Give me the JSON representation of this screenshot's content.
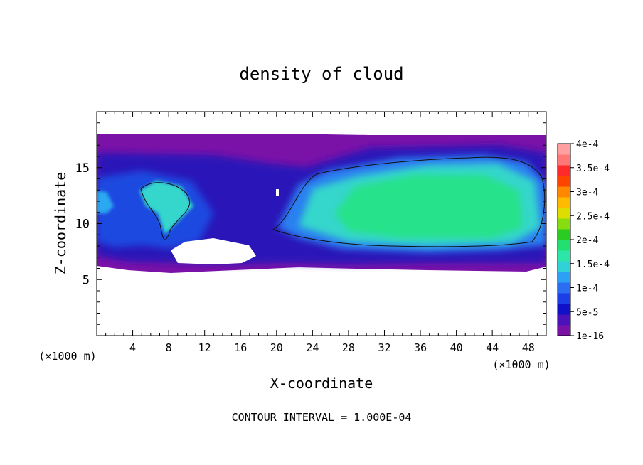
{
  "chart_data": {
    "type": "heatmap",
    "title": "density of cloud",
    "xlabel": "X-coordinate",
    "ylabel": "Z-coordinate",
    "x_unit_left": "(×1000 m)",
    "x_unit_right": "(×1000 m)",
    "footer": "CONTOUR INTERVAL = 1.000E-04",
    "xlim": [
      0,
      50
    ],
    "ylim": [
      0,
      20
    ],
    "x_ticks": [
      4,
      8,
      12,
      16,
      20,
      24,
      28,
      32,
      36,
      40,
      44,
      48
    ],
    "y_ticks": [
      5,
      10,
      15
    ],
    "colorbar": {
      "labels": [
        "1e-16",
        "5e-5",
        "1e-4",
        "1.5e-4",
        "2e-4",
        "2.5e-4",
        "3e-4",
        "3.5e-4",
        "4e-4"
      ],
      "levels": [
        0,
        0.5,
        1,
        1.5,
        2,
        2.5,
        3,
        3.5,
        4
      ],
      "colors": [
        "#7a12a8",
        "#4a12b8",
        "#1010c8",
        "#1c3ee6",
        "#2a6cf2",
        "#2da0f4",
        "#30d2d8",
        "#2be6a8",
        "#22e070",
        "#2acc22",
        "#88dd10",
        "#dddd00",
        "#ffbb00",
        "#ff8800",
        "#ff4400",
        "#ff2a2a",
        "#ff7777",
        "#ffa0a0"
      ]
    },
    "contour_level": "1e-4",
    "grid": false
  }
}
